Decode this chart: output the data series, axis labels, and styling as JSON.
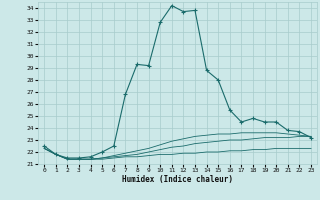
{
  "xlabel": "Humidex (Indice chaleur)",
  "xlim": [
    -0.5,
    23.5
  ],
  "ylim": [
    21,
    34.5
  ],
  "yticks": [
    21,
    22,
    23,
    24,
    25,
    26,
    27,
    28,
    29,
    30,
    31,
    32,
    33,
    34
  ],
  "xticks": [
    0,
    1,
    2,
    3,
    4,
    5,
    6,
    7,
    8,
    9,
    10,
    11,
    12,
    13,
    14,
    15,
    16,
    17,
    18,
    19,
    20,
    21,
    22,
    23
  ],
  "bg_color": "#cce8e8",
  "grid_color": "#a8cccc",
  "line_color": "#1a6b6b",
  "main_line": [
    22.5,
    21.8,
    21.5,
    21.5,
    21.6,
    22.0,
    22.5,
    26.8,
    29.3,
    29.2,
    32.8,
    34.2,
    33.7,
    33.8,
    28.8,
    28.0,
    25.5,
    24.5,
    24.8,
    24.5,
    24.5,
    23.8,
    23.7,
    23.2
  ],
  "line2": [
    22.3,
    21.8,
    21.4,
    21.4,
    21.4,
    21.4,
    21.5,
    21.6,
    21.6,
    21.7,
    21.8,
    21.8,
    21.9,
    21.9,
    22.0,
    22.0,
    22.1,
    22.1,
    22.2,
    22.2,
    22.3,
    22.3,
    22.3,
    22.3
  ],
  "line3": [
    22.3,
    21.8,
    21.4,
    21.4,
    21.4,
    21.5,
    21.6,
    21.7,
    21.8,
    22.0,
    22.2,
    22.4,
    22.5,
    22.7,
    22.8,
    22.9,
    23.0,
    23.0,
    23.1,
    23.2,
    23.2,
    23.2,
    23.3,
    23.3
  ],
  "line4": [
    22.3,
    21.8,
    21.4,
    21.4,
    21.4,
    21.5,
    21.7,
    21.9,
    22.1,
    22.3,
    22.6,
    22.9,
    23.1,
    23.3,
    23.4,
    23.5,
    23.5,
    23.6,
    23.6,
    23.6,
    23.6,
    23.5,
    23.4,
    23.3
  ]
}
